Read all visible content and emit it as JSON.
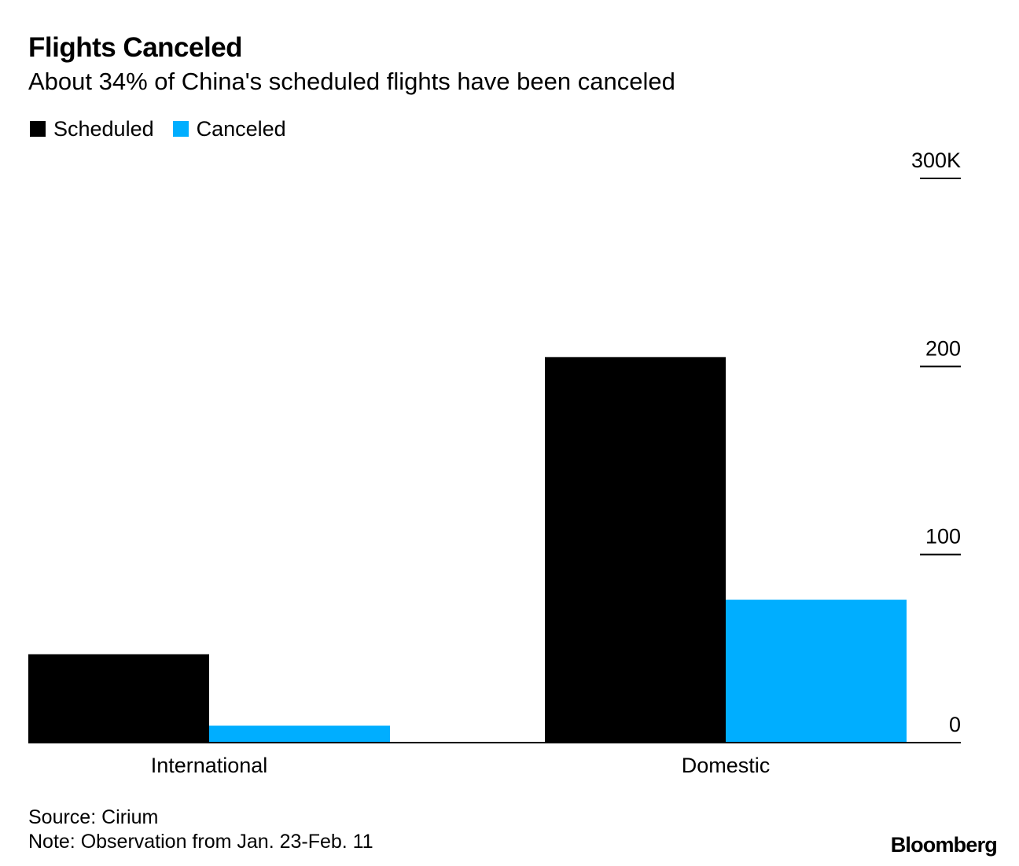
{
  "chart_data": {
    "type": "bar",
    "title": "Flights Canceled",
    "subtitle": "About 34% of China's scheduled flights have been canceled",
    "categories": [
      "International",
      "Domestic"
    ],
    "series": [
      {
        "name": "Scheduled",
        "color": "#000000",
        "values": [
          47,
          205
        ]
      },
      {
        "name": "Canceled",
        "color": "#00aeff",
        "values": [
          9,
          76
        ]
      }
    ],
    "y_ticks": [
      0,
      100,
      200,
      300
    ],
    "y_tick_labels": [
      "0",
      "100",
      "200",
      "300K"
    ],
    "ylim": [
      0,
      300
    ],
    "y_axis_position": "right",
    "xlabel": "",
    "ylabel": ""
  },
  "source": "Source: Cirium",
  "note": "Note: Observation from Jan. 23-Feb. 11",
  "brand": "Bloomberg"
}
